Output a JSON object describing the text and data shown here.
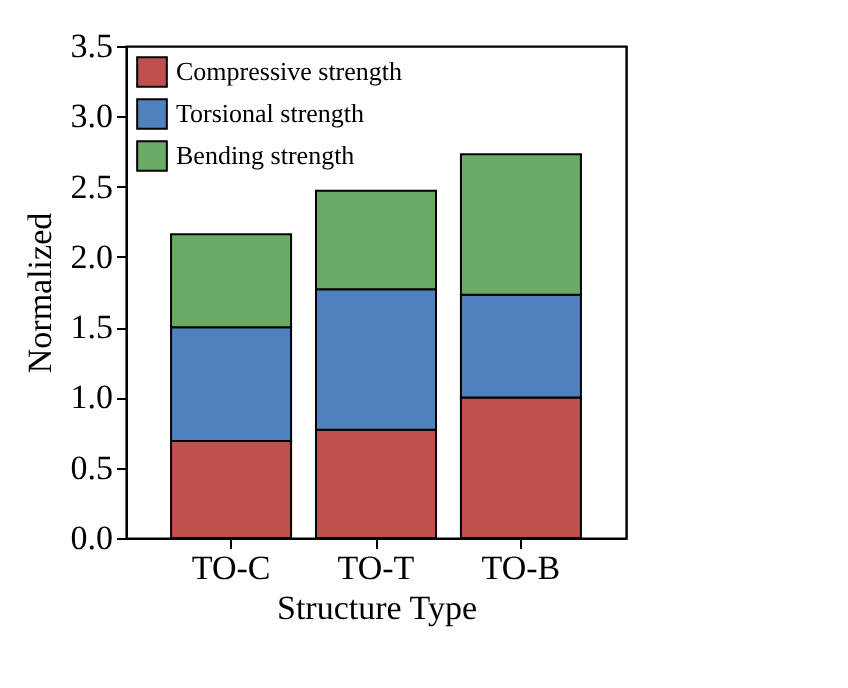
{
  "chart_data": {
    "type": "bar",
    "stacked": true,
    "xlabel": "Structure Type",
    "ylabel": "Normalized",
    "categories": [
      "TO-C",
      "TO-T",
      "TO-B"
    ],
    "series": [
      {
        "name": "Compressive strength",
        "color": "#c0504d",
        "values": [
          0.69,
          0.77,
          1.0
        ]
      },
      {
        "name": "Torsional strength",
        "color": "#4f81bd",
        "values": [
          0.81,
          1.0,
          0.73
        ]
      },
      {
        "name": "Bending strength",
        "color": "#6aaa64",
        "values": [
          0.66,
          0.7,
          1.0
        ]
      }
    ],
    "ylim": [
      0,
      3.5
    ],
    "yticks": [
      {
        "value": 0,
        "label": "0.0"
      },
      0.5,
      {
        "value": 1,
        "label": "1.0"
      },
      1.5,
      {
        "value": 2,
        "label": "2.0"
      },
      2.5,
      {
        "value": 3,
        "label": "3.0"
      },
      3.5
    ],
    "grid": false,
    "legend": "top left"
  }
}
